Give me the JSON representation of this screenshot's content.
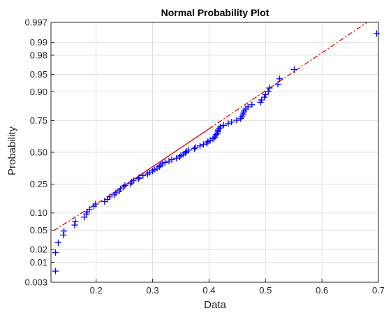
{
  "chart_data": {
    "type": "scatter",
    "title": "Normal Probability Plot",
    "xlabel": "Data",
    "ylabel": "Probability",
    "xlim": [
      0.12,
      0.7
    ],
    "ylim": [
      0.003,
      0.997
    ],
    "y_scale": "normal-probability",
    "grid": true,
    "x_ticks": [
      0.2,
      0.3,
      0.4,
      0.5,
      0.6,
      0.7
    ],
    "x_tick_labels": [
      "0.2",
      "0.3",
      "0.4",
      "0.5",
      "0.6",
      "0.7"
    ],
    "y_ticks": [
      0.003,
      0.01,
      0.02,
      0.05,
      0.1,
      0.25,
      0.5,
      0.75,
      0.9,
      0.95,
      0.98,
      0.99,
      0.997
    ],
    "y_tick_labels": [
      "0.003",
      "0.01",
      "0.02",
      "0.05",
      "0.10",
      "0.25",
      "0.50",
      "0.75",
      "0.90",
      "0.95",
      "0.98",
      "0.99",
      "0.997"
    ],
    "colors": {
      "points": "#0000ff",
      "reference_line": "#e00000",
      "grid": "#e0e0e0"
    },
    "marker": "plus",
    "reference_line": {
      "solid": [
        [
          0.225,
          0.183
        ],
        [
          0.4,
          0.69
        ]
      ],
      "dashdot_lower": [
        [
          0.125,
          0.049
        ],
        [
          0.225,
          0.183
        ]
      ],
      "dashdot_upper": [
        [
          0.4,
          0.69
        ],
        [
          0.68,
          0.997
        ]
      ]
    },
    "points": [
      [
        0.128,
        0.006
      ],
      [
        0.128,
        0.017
      ],
      [
        0.133,
        0.028
      ],
      [
        0.142,
        0.04
      ],
      [
        0.143,
        0.048
      ],
      [
        0.162,
        0.062
      ],
      [
        0.163,
        0.072
      ],
      [
        0.179,
        0.085
      ],
      [
        0.183,
        0.096
      ],
      [
        0.184,
        0.104
      ],
      [
        0.188,
        0.114
      ],
      [
        0.196,
        0.127
      ],
      [
        0.199,
        0.137
      ],
      [
        0.215,
        0.149
      ],
      [
        0.22,
        0.16
      ],
      [
        0.224,
        0.173
      ],
      [
        0.232,
        0.184
      ],
      [
        0.235,
        0.196
      ],
      [
        0.241,
        0.206
      ],
      [
        0.243,
        0.219
      ],
      [
        0.249,
        0.232
      ],
      [
        0.251,
        0.242
      ],
      [
        0.261,
        0.253
      ],
      [
        0.263,
        0.265
      ],
      [
        0.266,
        0.276
      ],
      [
        0.275,
        0.289
      ],
      [
        0.276,
        0.298
      ],
      [
        0.283,
        0.311
      ],
      [
        0.291,
        0.323
      ],
      [
        0.294,
        0.334
      ],
      [
        0.3,
        0.346
      ],
      [
        0.303,
        0.358
      ],
      [
        0.308,
        0.369
      ],
      [
        0.312,
        0.38
      ],
      [
        0.314,
        0.393
      ],
      [
        0.317,
        0.404
      ],
      [
        0.322,
        0.416
      ],
      [
        0.329,
        0.426
      ],
      [
        0.334,
        0.438
      ],
      [
        0.342,
        0.45
      ],
      [
        0.348,
        0.461
      ],
      [
        0.35,
        0.473
      ],
      [
        0.355,
        0.484
      ],
      [
        0.358,
        0.496
      ],
      [
        0.36,
        0.508
      ],
      [
        0.364,
        0.519
      ],
      [
        0.374,
        0.531
      ],
      [
        0.376,
        0.542
      ],
      [
        0.384,
        0.554
      ],
      [
        0.39,
        0.566
      ],
      [
        0.396,
        0.577
      ],
      [
        0.398,
        0.589
      ],
      [
        0.402,
        0.6
      ],
      [
        0.407,
        0.612
      ],
      [
        0.41,
        0.624
      ],
      [
        0.411,
        0.635
      ],
      [
        0.413,
        0.647
      ],
      [
        0.415,
        0.658
      ],
      [
        0.416,
        0.67
      ],
      [
        0.416,
        0.681
      ],
      [
        0.418,
        0.693
      ],
      [
        0.42,
        0.704
      ],
      [
        0.426,
        0.716
      ],
      [
        0.434,
        0.728
      ],
      [
        0.44,
        0.739
      ],
      [
        0.449,
        0.751
      ],
      [
        0.456,
        0.762
      ],
      [
        0.458,
        0.774
      ],
      [
        0.46,
        0.786
      ],
      [
        0.461,
        0.797
      ],
      [
        0.462,
        0.809
      ],
      [
        0.465,
        0.82
      ],
      [
        0.469,
        0.832
      ],
      [
        0.476,
        0.843
      ],
      [
        0.491,
        0.855
      ],
      [
        0.493,
        0.866
      ],
      [
        0.498,
        0.878
      ],
      [
        0.5,
        0.889
      ],
      [
        0.505,
        0.901
      ],
      [
        0.507,
        0.913
      ],
      [
        0.522,
        0.925
      ],
      [
        0.525,
        0.94
      ],
      [
        0.551,
        0.96
      ],
      [
        0.697,
        0.994
      ]
    ]
  }
}
